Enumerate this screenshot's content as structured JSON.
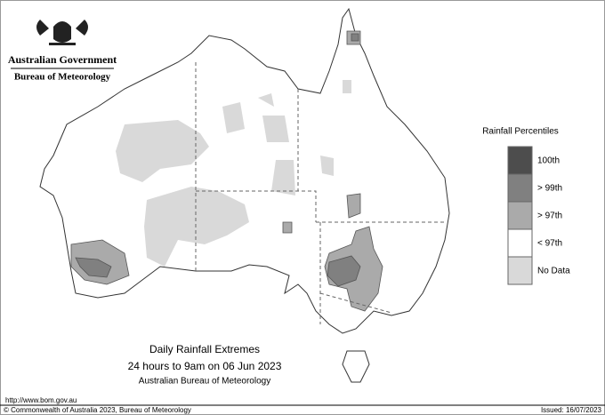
{
  "header": {
    "government": "Australian Government",
    "agency": "Bureau of Meteorology"
  },
  "legend": {
    "title": "Rainfall Percentiles",
    "items": [
      {
        "label": "100th",
        "color": "#4d4d4d"
      },
      {
        "label": "> 99th",
        "color": "#808080"
      },
      {
        "label": "> 97th",
        "color": "#aaaaaa"
      },
      {
        "label": "< 97th",
        "color": "#ffffff"
      },
      {
        "label": "No Data",
        "color": "#d9d9d9"
      }
    ]
  },
  "caption": {
    "title": "Daily Rainfall Extremes",
    "period": "24 hours to 9am on 06 Jun 2023",
    "source": "Australian Bureau of Meteorology"
  },
  "footer": {
    "url": "http://www.bom.gov.au",
    "copyright": "© Commonwealth of Australia 2023, Bureau of Meteorology",
    "issued": "Issued: 16/07/2023"
  }
}
